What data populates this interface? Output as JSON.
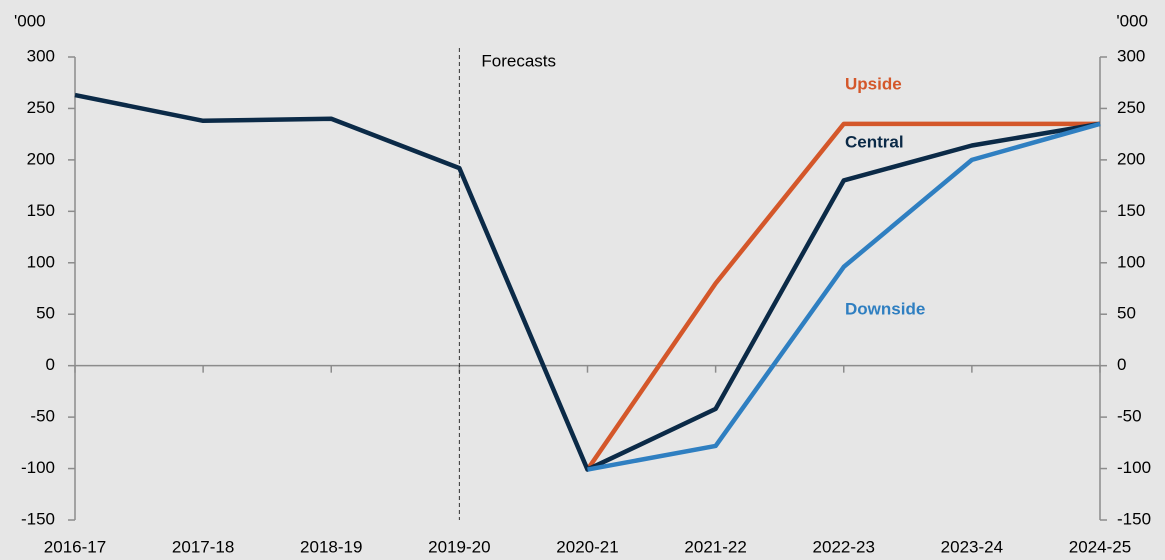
{
  "chart_data": {
    "type": "line",
    "categories": [
      "2016-17",
      "2017-18",
      "2018-19",
      "2019-20",
      "2020-21",
      "2021-22",
      "2022-23",
      "2023-24",
      "2024-25"
    ],
    "series": [
      {
        "name": "Upside",
        "color": "#d4572a",
        "values": [
          null,
          null,
          null,
          null,
          -101,
          80,
          235,
          235,
          235
        ]
      },
      {
        "name": "Central",
        "color": "#0b2a47",
        "values": [
          263,
          238,
          240,
          192,
          -101,
          -42,
          180,
          214,
          235
        ]
      },
      {
        "name": "Downside",
        "color": "#2f7fc1",
        "values": [
          null,
          null,
          null,
          null,
          -101,
          -78,
          96,
          200,
          235
        ]
      }
    ],
    "y_unit": "'000",
    "y2_unit": "'000",
    "ylim": [
      -150,
      300
    ],
    "yticks": [
      -150,
      -100,
      -50,
      0,
      50,
      100,
      150,
      200,
      250,
      300
    ],
    "y2lim": [
      -150,
      300
    ],
    "y2ticks": [
      -150,
      -100,
      -50,
      0,
      50,
      100,
      150,
      200,
      250,
      300
    ],
    "annotations": [
      {
        "text": "Forecasts",
        "x": "2019-20"
      }
    ]
  }
}
